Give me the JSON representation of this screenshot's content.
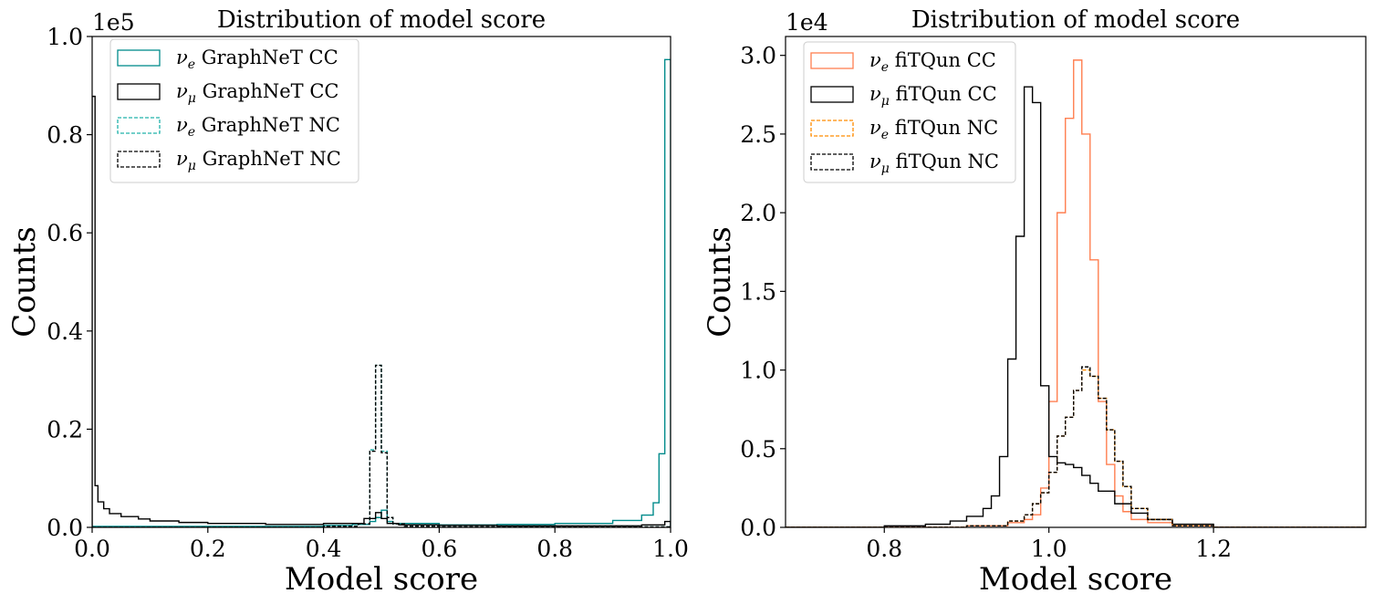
{
  "chart_data": [
    {
      "type": "histogram",
      "title": "Distribution of model score",
      "xlabel": "Model score",
      "ylabel": "Counts",
      "y_multiplier_label": "1e5",
      "scale": 100000,
      "xlim": [
        0.0,
        1.0
      ],
      "ylim": [
        0.0,
        1.0
      ],
      "xticks": [
        "0.0",
        "0.2",
        "0.4",
        "0.6",
        "0.8",
        "1.0"
      ],
      "xtick_values": [
        0.0,
        0.2,
        0.4,
        0.6,
        0.8,
        1.0
      ],
      "yticks": [
        "0.0",
        "0.2",
        "0.4",
        "0.6",
        "0.8",
        "1.0"
      ],
      "ytick_values": [
        0.0,
        0.2,
        0.4,
        0.6,
        0.8,
        1.0
      ],
      "legend_position": "top-left",
      "series": [
        {
          "name": "GraphNeT CC",
          "flavor": "e",
          "color": "#008b8b",
          "dash": "solid",
          "x": [
            0.0,
            0.1,
            0.2,
            0.3,
            0.4,
            0.45,
            0.48,
            0.49,
            0.5,
            0.51,
            0.52,
            0.6,
            0.7,
            0.8,
            0.9,
            0.95,
            0.97,
            0.98,
            0.99,
            1.0
          ],
          "y": [
            0.002,
            0.002,
            0.002,
            0.002,
            0.004,
            0.006,
            0.012,
            0.02,
            0.035,
            0.012,
            0.008,
            0.005,
            0.006,
            0.008,
            0.014,
            0.025,
            0.05,
            0.15,
            0.953
          ]
        },
        {
          "name": "GraphNeT CC",
          "flavor": "mu",
          "color": "#000000",
          "dash": "solid",
          "x": [
            0.0,
            0.005,
            0.01,
            0.02,
            0.03,
            0.05,
            0.08,
            0.1,
            0.15,
            0.2,
            0.3,
            0.4,
            0.47,
            0.49,
            0.5,
            0.51,
            0.53,
            0.6,
            0.7,
            0.8,
            0.9,
            0.95,
            0.99,
            1.0
          ],
          "y": [
            0.878,
            0.085,
            0.052,
            0.038,
            0.028,
            0.022,
            0.017,
            0.013,
            0.01,
            0.008,
            0.006,
            0.008,
            0.018,
            0.03,
            0.018,
            0.008,
            0.005,
            0.004,
            0.003,
            0.003,
            0.003,
            0.005,
            0.012
          ]
        },
        {
          "name": "GraphNeT NC",
          "flavor": "e",
          "color": "#20b2aa",
          "dash": "dashed",
          "x": [
            0.0,
            0.4,
            0.46,
            0.48,
            0.49,
            0.5,
            0.51,
            0.52,
            0.54,
            0.6,
            1.0
          ],
          "y": [
            0.0,
            0.002,
            0.007,
            0.158,
            0.33,
            0.155,
            0.02,
            0.007,
            0.002,
            0.001
          ]
        },
        {
          "name": "GraphNeT NC",
          "flavor": "mu",
          "color": "#000000",
          "dash": "dashed",
          "x": [
            0.0,
            0.4,
            0.46,
            0.48,
            0.49,
            0.5,
            0.51,
            0.52,
            0.54,
            0.6,
            1.0
          ],
          "y": [
            0.0,
            0.002,
            0.007,
            0.155,
            0.33,
            0.152,
            0.02,
            0.007,
            0.002,
            0.001
          ]
        }
      ]
    },
    {
      "type": "histogram",
      "title": "Distribution of model score",
      "xlabel": "Model score",
      "ylabel": "Counts",
      "y_multiplier_label": "1e4",
      "scale": 10000,
      "xlim": [
        0.68,
        1.385
      ],
      "ylim": [
        0.0,
        3.12
      ],
      "xticks": [
        "0.8",
        "1.0",
        "1.2"
      ],
      "xtick_values": [
        0.8,
        1.0,
        1.2
      ],
      "yticks": [
        "0.0",
        "0.5",
        "1.0",
        "1.5",
        "2.0",
        "2.5",
        "3.0"
      ],
      "ytick_values": [
        0.0,
        0.5,
        1.0,
        1.5,
        2.0,
        2.5,
        3.0
      ],
      "legend_position": "top-left",
      "series": [
        {
          "name": "fiTQun CC",
          "flavor": "e",
          "color": "#ff7f50",
          "dash": "solid",
          "x": [
            0.68,
            0.9,
            0.95,
            0.97,
            0.98,
            0.99,
            1.0,
            1.01,
            1.02,
            1.03,
            1.04,
            1.05,
            1.06,
            1.07,
            1.08,
            1.09,
            1.1,
            1.12,
            1.15,
            1.2,
            1.385
          ],
          "y": [
            0.0,
            0.01,
            0.03,
            0.05,
            0.08,
            0.25,
            0.8,
            2.0,
            2.6,
            2.97,
            2.5,
            1.7,
            0.8,
            0.4,
            0.2,
            0.1,
            0.05,
            0.03,
            0.01,
            0.0
          ]
        },
        {
          "name": "fiTQun CC",
          "flavor": "mu",
          "color": "#000000",
          "dash": "solid",
          "x": [
            0.68,
            0.8,
            0.85,
            0.88,
            0.9,
            0.92,
            0.93,
            0.94,
            0.95,
            0.96,
            0.97,
            0.98,
            0.99,
            1.0,
            1.01,
            1.02,
            1.03,
            1.04,
            1.05,
            1.06,
            1.08,
            1.1,
            1.12,
            1.15,
            1.2,
            1.385
          ],
          "y": [
            0.0,
            0.01,
            0.02,
            0.04,
            0.07,
            0.12,
            0.2,
            0.45,
            1.07,
            1.85,
            2.8,
            2.7,
            0.9,
            0.45,
            0.41,
            0.4,
            0.38,
            0.33,
            0.28,
            0.23,
            0.15,
            0.09,
            0.05,
            0.02,
            0.0
          ]
        },
        {
          "name": "fiTQun NC",
          "flavor": "e",
          "color": "#ff8c00",
          "dash": "dashed",
          "x": [
            0.68,
            0.9,
            0.95,
            0.97,
            0.98,
            0.99,
            1.0,
            1.01,
            1.02,
            1.03,
            1.04,
            1.05,
            1.06,
            1.07,
            1.08,
            1.09,
            1.1,
            1.12,
            1.15,
            1.2,
            1.385
          ],
          "y": [
            0.0,
            0.01,
            0.04,
            0.08,
            0.15,
            0.22,
            0.35,
            0.58,
            0.7,
            0.87,
            1.0,
            0.96,
            0.82,
            0.62,
            0.42,
            0.26,
            0.12,
            0.05,
            0.01,
            0.0
          ]
        },
        {
          "name": "fiTQun NC",
          "flavor": "mu",
          "color": "#000000",
          "dash": "dashed",
          "x": [
            0.68,
            0.9,
            0.95,
            0.97,
            0.98,
            0.99,
            1.0,
            1.01,
            1.02,
            1.03,
            1.04,
            1.05,
            1.06,
            1.07,
            1.08,
            1.09,
            1.1,
            1.12,
            1.15,
            1.2,
            1.385
          ],
          "y": [
            0.0,
            0.01,
            0.04,
            0.08,
            0.15,
            0.22,
            0.35,
            0.58,
            0.7,
            0.87,
            1.02,
            0.96,
            0.82,
            0.62,
            0.42,
            0.26,
            0.12,
            0.05,
            0.01,
            0.0
          ]
        }
      ]
    }
  ]
}
